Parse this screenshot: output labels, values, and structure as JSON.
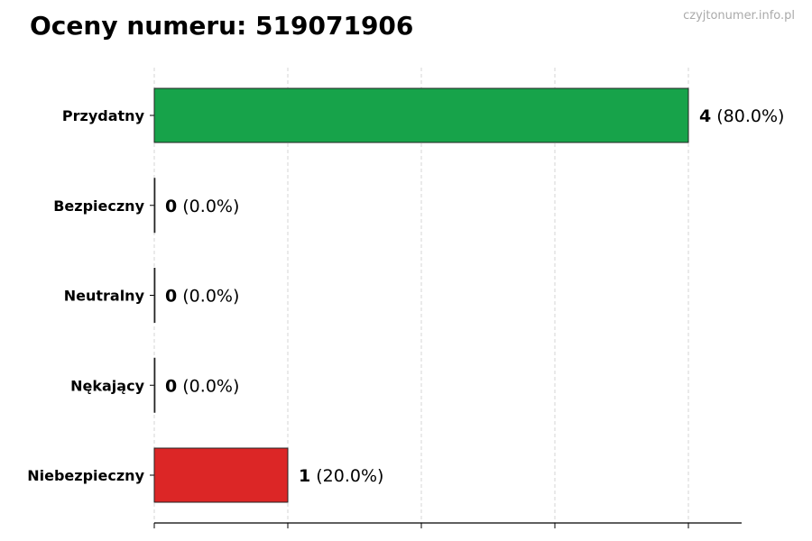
{
  "header": {
    "title": "Oceny numeru: 519071906",
    "watermark": "czyjtonumer.info.pl"
  },
  "chart_data": {
    "type": "bar",
    "orientation": "horizontal",
    "categories": [
      "Przydatny",
      "Bezpieczny",
      "Neutralny",
      "Nękający",
      "Niebezpieczny"
    ],
    "values": [
      4,
      0,
      0,
      0,
      1
    ],
    "value_labels": [
      "4",
      "0",
      "0",
      "0",
      "1"
    ],
    "percent_labels": [
      "(80.0%)",
      "(0.0%)",
      "(0.0%)",
      "(0.0%)",
      "(20.0%)"
    ],
    "colors": [
      "#17a34a",
      "#17a34a",
      "#888888",
      "#dc2626",
      "#dc2626"
    ],
    "xlim": [
      0,
      4.4
    ],
    "xticks": [
      0,
      1,
      2,
      3,
      4
    ],
    "grid": "x-dashed",
    "title": "Oceny numeru: 519071906"
  }
}
